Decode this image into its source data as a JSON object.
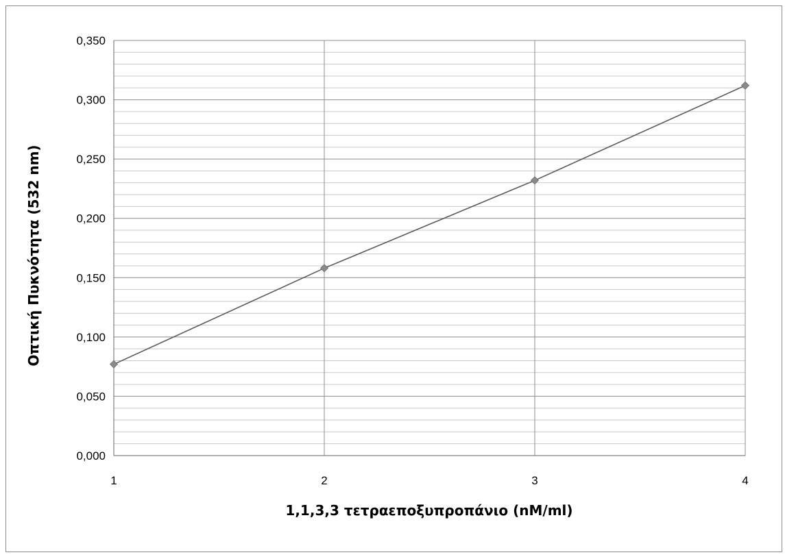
{
  "chart_data": {
    "type": "line",
    "title": "",
    "xlabel": "1,1,3,3 τετραεποξυπροπάνιο (nM/ml)",
    "ylabel": "Οπτική Πυκνότητα (532 nm)",
    "x": [
      1,
      2,
      3,
      4
    ],
    "series": [
      {
        "values": [
          0.077,
          0.158,
          0.232,
          0.312
        ]
      }
    ],
    "xlim": [
      1,
      4
    ],
    "ylim": [
      0,
      0.35
    ],
    "x_ticks": [
      "1",
      "2",
      "3",
      "4"
    ],
    "y_ticks": [
      "0,000",
      "0,050",
      "0,100",
      "0,150",
      "0,200",
      "0,250",
      "0,300",
      "0,350"
    ],
    "grid": true,
    "legend": "none",
    "colors": {
      "line": "#5a5a5a",
      "marker": "#8a8a8a",
      "grid": "#a6a6a6"
    }
  }
}
